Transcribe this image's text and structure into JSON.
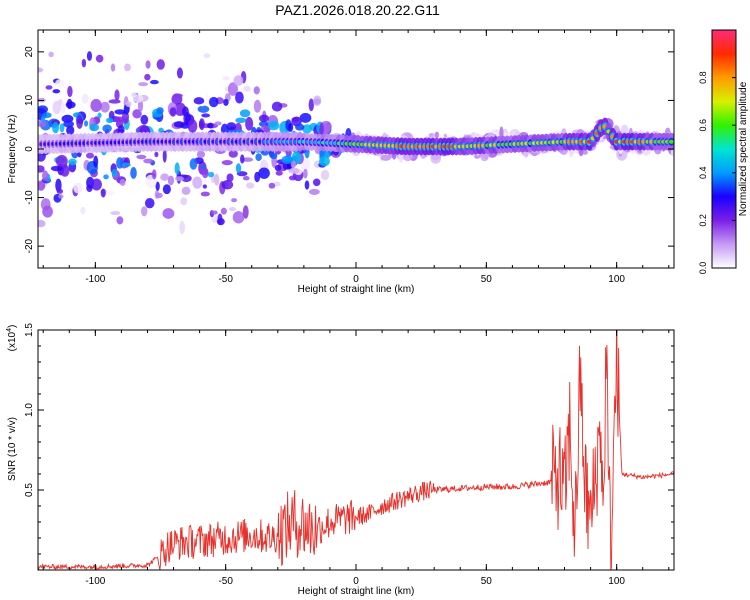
{
  "title": "PAZ1.2026.018.20.22.G11",
  "chart_data": [
    {
      "type": "heatmap",
      "xlabel": "Height of straight line (km)",
      "ylabel": "Frequency (Hz)",
      "xlim": [
        -122,
        122
      ],
      "ylim": [
        -24.5,
        24.5
      ],
      "xticks": [
        -100,
        -50,
        0,
        50,
        100
      ],
      "yticks": [
        -20,
        -10,
        0,
        10,
        20
      ],
      "colorbar": {
        "label": "Normalized spectral amplitude",
        "range": [
          0,
          1
        ],
        "ticks": [
          "0.0",
          "0.2",
          "0.4",
          "0.6",
          "0.8"
        ],
        "colors": [
          "#ffffff",
          "#c79af4",
          "#7a1fe6",
          "#1a00ff",
          "#009dff",
          "#00e5d0",
          "#33f000",
          "#d8f000",
          "#ff9a00",
          "#ff2a00",
          "#ff2a78"
        ]
      },
      "ridge": {
        "description_points_x": [
          -120,
          -80,
          -40,
          -20,
          0,
          20,
          40,
          60,
          80,
          90,
          95,
          100,
          122
        ],
        "center_freq": [
          1,
          1.5,
          1.5,
          1.5,
          1,
          0.5,
          0.5,
          1,
          1.5,
          1.5,
          5,
          1.5,
          1.5
        ],
        "peak_amplitude": [
          0.3,
          0.3,
          0.35,
          0.45,
          0.6,
          0.9,
          0.8,
          0.65,
          0.7,
          0.9,
          0.8,
          0.85,
          0.7
        ]
      }
    },
    {
      "type": "line",
      "xlabel": "Height of straight line (km)",
      "ylabel": "SNR (10 * v/v)",
      "yscale_label": "(x10",
      "yscale_exp": "4",
      "xlim": [
        -122,
        122
      ],
      "ylim": [
        0,
        1.5
      ],
      "xticks": [
        -100,
        -50,
        0,
        50,
        100
      ],
      "yticks": [
        0.5,
        1.0,
        1.5
      ],
      "color": "#e8302a",
      "series": [
        {
          "x": [
            -122,
            -100,
            -80,
            -76,
            -72,
            -68,
            -60,
            -50,
            -40,
            -32,
            -28,
            -24,
            -20,
            -16,
            -10,
            -5,
            0,
            5,
            10,
            15,
            20,
            25,
            30,
            40,
            50,
            60,
            65,
            70,
            75,
            78,
            80,
            82,
            84,
            86,
            88,
            90,
            92,
            94,
            95,
            96,
            97,
            98,
            99,
            100,
            102,
            110,
            122
          ],
          "y": [
            0.02,
            0.02,
            0.03,
            0.08,
            0.15,
            0.17,
            0.18,
            0.2,
            0.22,
            0.2,
            0.25,
            0.3,
            0.28,
            0.25,
            0.3,
            0.32,
            0.33,
            0.35,
            0.4,
            0.43,
            0.46,
            0.49,
            0.5,
            0.51,
            0.52,
            0.52,
            0.53,
            0.54,
            0.55,
            0.6,
            0.45,
            0.9,
            0.2,
            1.2,
            0.5,
            0.3,
            0.6,
            0.9,
            0.3,
            1.5,
            0.4,
            0.2,
            0.8,
            1.35,
            0.6,
            0.58,
            0.6
          ]
        }
      ]
    }
  ]
}
